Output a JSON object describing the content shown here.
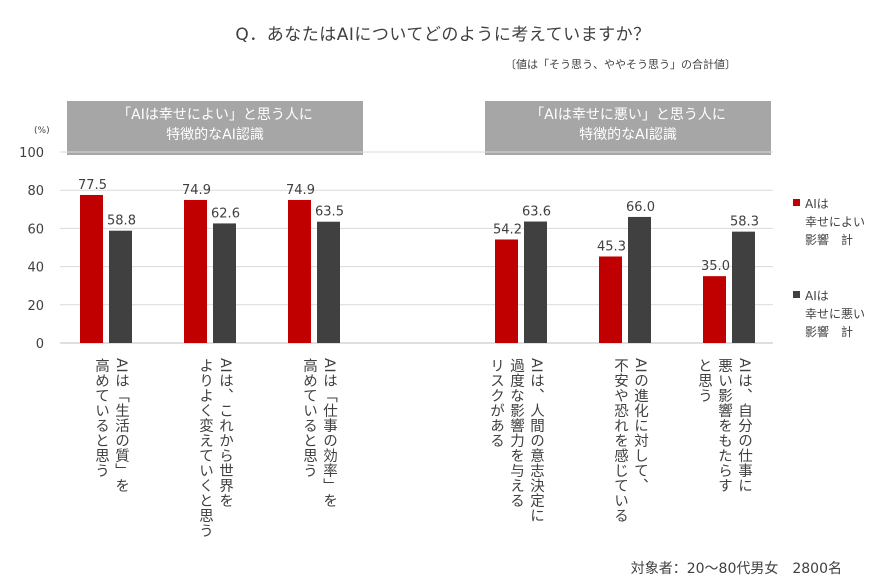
{
  "title": "Q．あなたはAIについてどのように考えていますか？",
  "note": "〔値は「そう思う、ややそう思う」の合計値〕",
  "banners": {
    "left": [
      "「AIは幸せによい」と思う人に",
      "特徴的なAI認識"
    ],
    "right": [
      "「AIは幸せに悪い」と思う人に",
      "特徴的なAI認識"
    ]
  },
  "footer": "対象者：20～80代男女　2800名",
  "colors": {
    "good": "#c00000",
    "bad": "#404040",
    "grid": "#d9d9d9",
    "banner": "#a6a6a6"
  },
  "chart_data": {
    "type": "bar",
    "ylabel": "(%)",
    "ylim": [
      0,
      100
    ],
    "yticks": [
      0,
      20,
      40,
      60,
      80,
      100
    ],
    "grid": true,
    "legend_position": "right",
    "categories": [
      "AIは「生活の質」を\n高めていると思う",
      "AIは、これから世界を\nよりよく変えていくと思う",
      "AIは「仕事の効率」を\n高めていると思う",
      "AIは、人間の意志決定に\n過度な影響力を与える\nリスクがある",
      "AIの進化に対して、\n不安や恐れを感じている",
      "AIは、自分の仕事に\n悪い影響をもたらす\nと思う"
    ],
    "series": [
      {
        "name": "AIは\n幸せによい\n影響　計",
        "values": [
          77.5,
          74.9,
          74.9,
          54.2,
          45.3,
          35.0
        ]
      },
      {
        "name": "AIは\n幸せに悪い\n影響　計",
        "values": [
          58.8,
          62.6,
          63.5,
          63.6,
          66.0,
          58.3
        ]
      }
    ]
  }
}
